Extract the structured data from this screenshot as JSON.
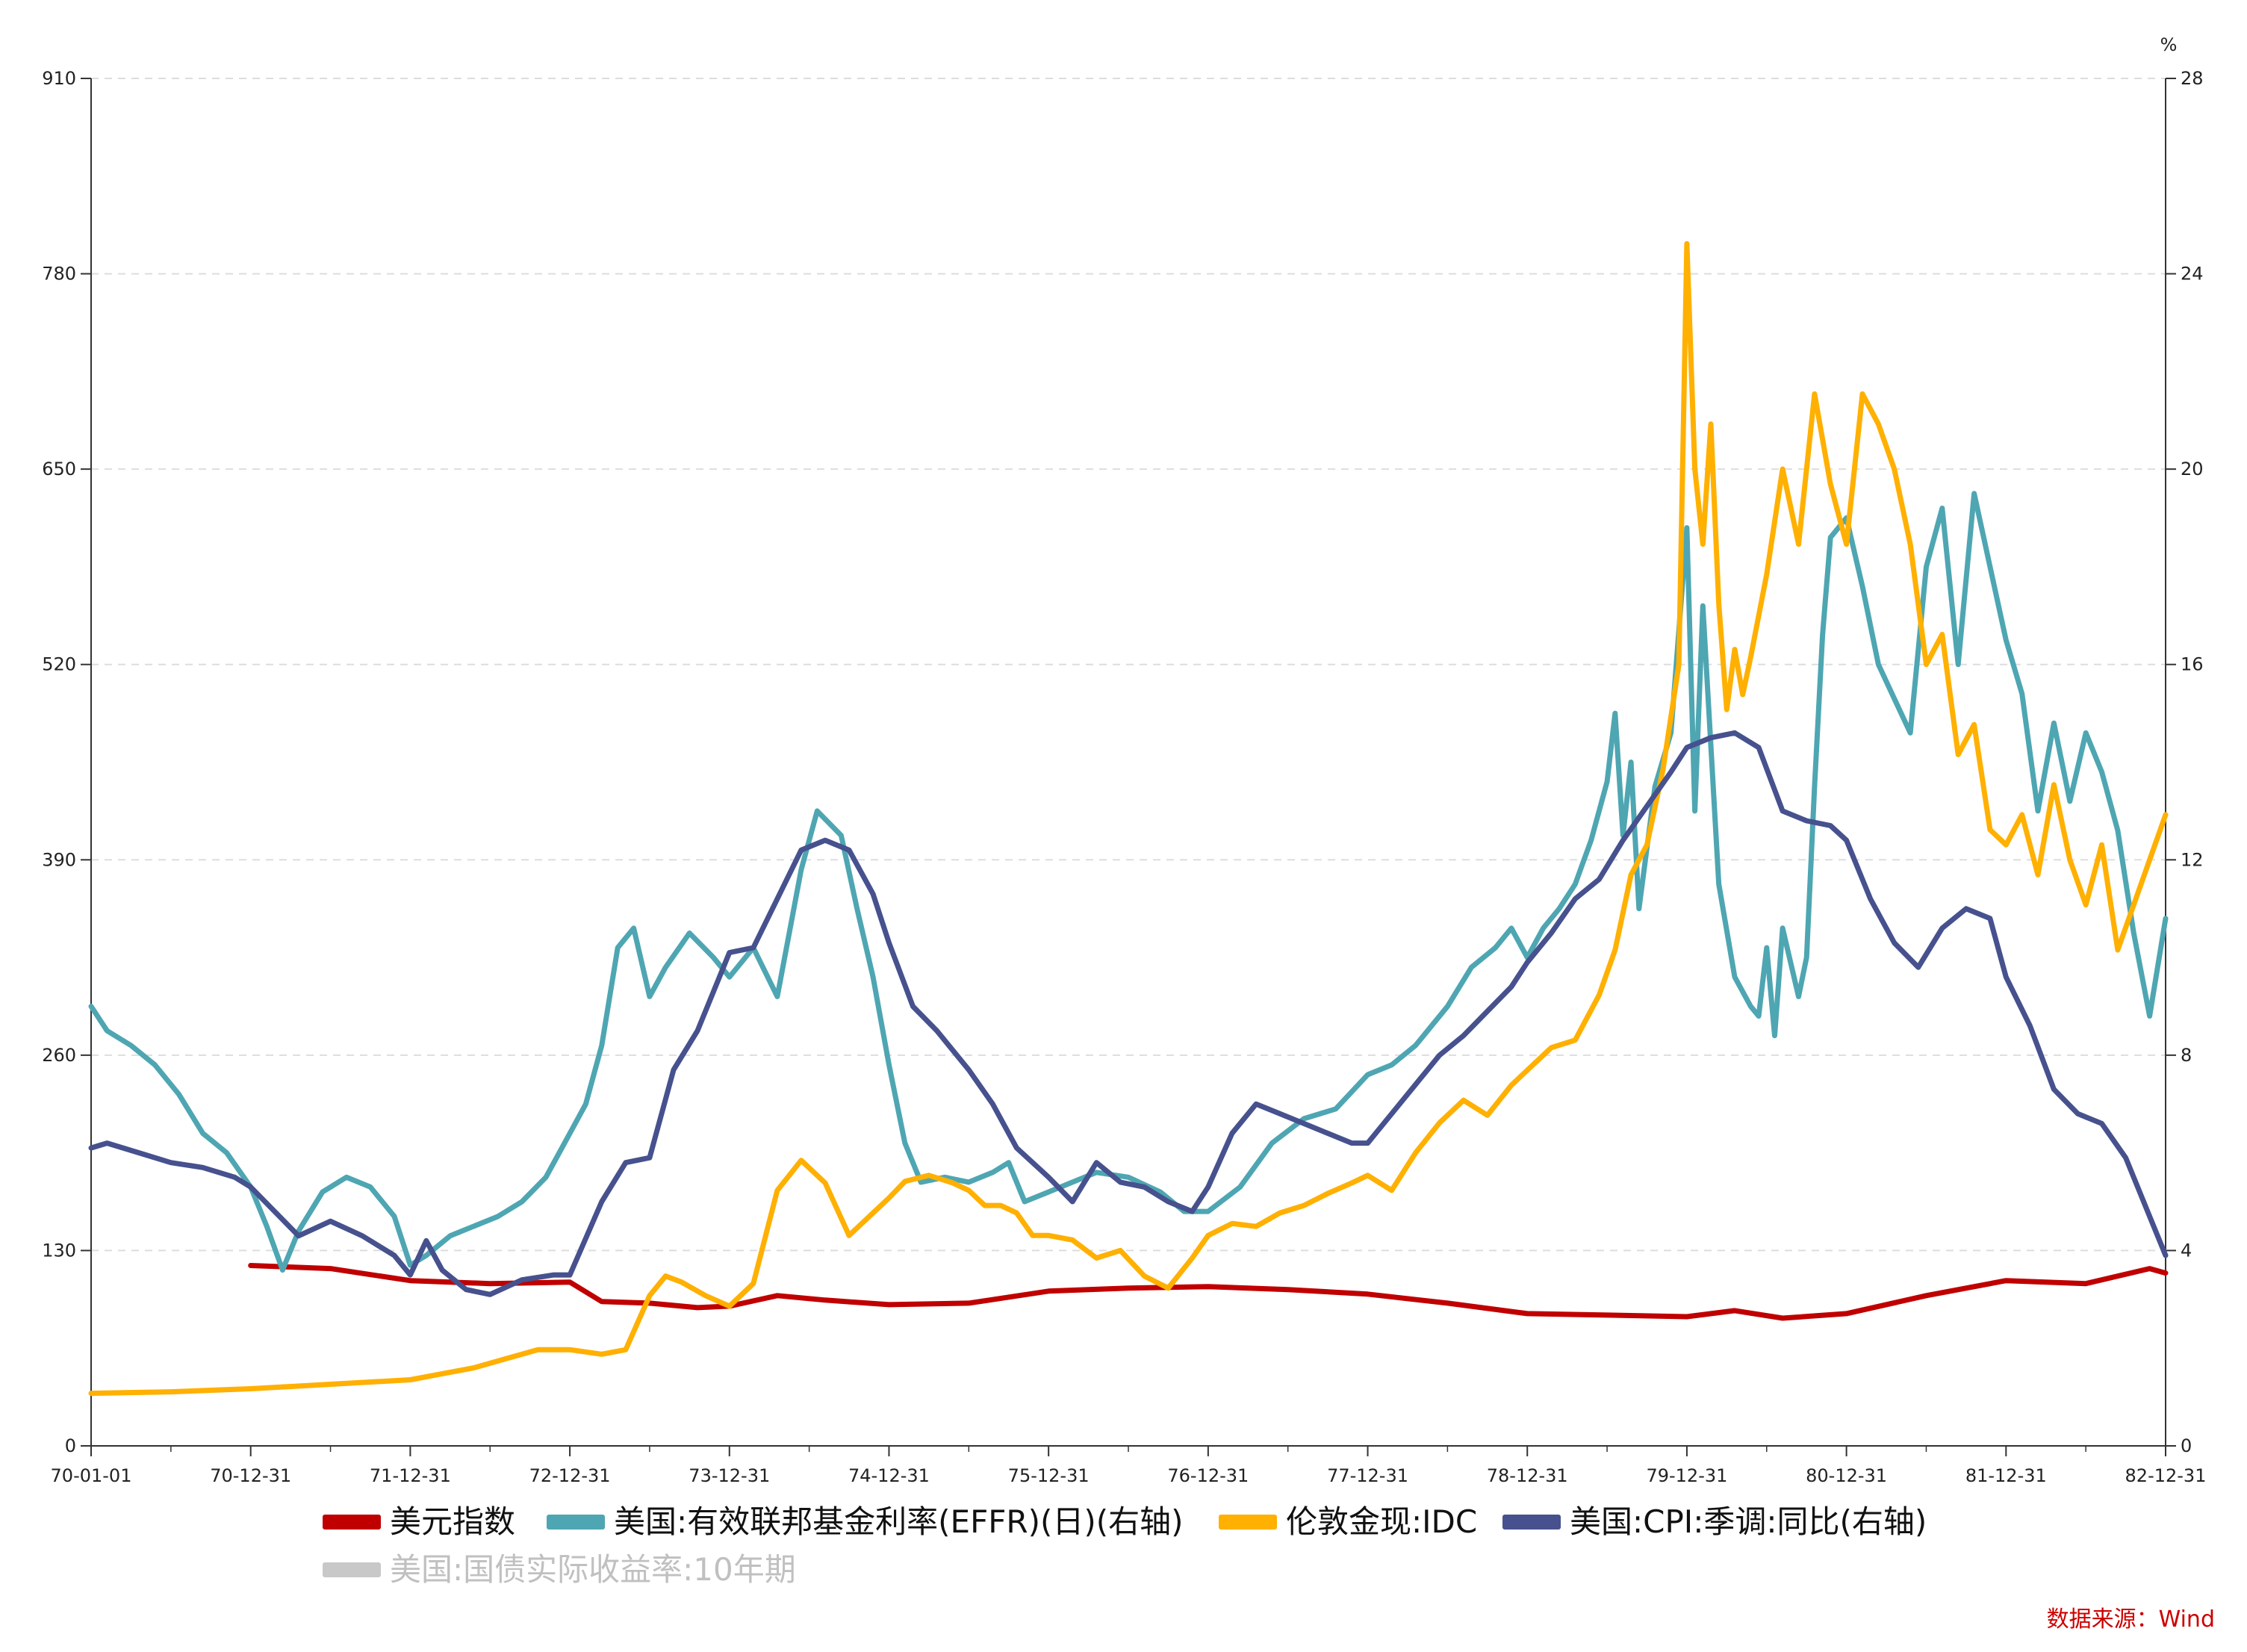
{
  "chart_data": {
    "type": "line",
    "left_axis": {
      "ticks": [
        "910",
        "780",
        "650",
        "520",
        "390",
        "260",
        "130",
        "0"
      ],
      "ylim": [
        0,
        910
      ]
    },
    "right_axis": {
      "unit": "%",
      "ticks": [
        "28",
        "24",
        "20",
        "16",
        "12",
        "8",
        "4",
        "0"
      ],
      "ylim": [
        0,
        28
      ]
    },
    "x_ticks": [
      "70-01-01",
      "70-12-31",
      "71-12-31",
      "72-12-31",
      "73-12-31",
      "74-12-31",
      "75-12-31",
      "76-12-31",
      "77-12-31",
      "78-12-31",
      "79-12-31",
      "80-12-31",
      "81-12-31",
      "82-12-31"
    ],
    "grid": true,
    "legend_position": "bottom",
    "source": "数据来源：Wind",
    "series": [
      {
        "name": "美元指数",
        "axis": "left",
        "color": "#c00000",
        "x": [
          0,
          0.5,
          1,
          1.5,
          2,
          2.5,
          3,
          3.2,
          3.5,
          3.8,
          4,
          4.3,
          4.6,
          5,
          5.5,
          6,
          6.5,
          7,
          7.5,
          8,
          8.5,
          9,
          9.5,
          10,
          10.3,
          10.6,
          11,
          11.5,
          12,
          12.5,
          12.9,
          13
        ],
        "y": [
          null,
          null,
          120,
          118,
          110,
          108,
          109,
          96,
          95,
          92,
          93,
          100,
          97,
          94,
          95,
          103,
          105,
          106,
          104,
          101,
          95,
          88,
          87,
          86,
          90,
          85,
          88,
          100,
          110,
          108,
          118,
          115
        ]
      },
      {
        "name": "美国:有效联邦基金利率(EFFR)(日)(右轴)",
        "axis": "right",
        "color": "#4ea6b2",
        "x": [
          0,
          0.1,
          0.25,
          0.4,
          0.55,
          0.7,
          0.85,
          1,
          1.1,
          1.2,
          1.3,
          1.45,
          1.6,
          1.75,
          1.9,
          2,
          2.1,
          2.25,
          2.4,
          2.55,
          2.7,
          2.85,
          3,
          3.1,
          3.2,
          3.3,
          3.4,
          3.5,
          3.6,
          3.75,
          3.9,
          4,
          4.15,
          4.3,
          4.45,
          4.55,
          4.7,
          4.8,
          4.9,
          5,
          5.1,
          5.2,
          5.35,
          5.5,
          5.65,
          5.75,
          5.85,
          6,
          6.15,
          6.3,
          6.5,
          6.7,
          6.85,
          7,
          7.2,
          7.4,
          7.6,
          7.8,
          8,
          8.15,
          8.3,
          8.5,
          8.65,
          8.8,
          8.9,
          9,
          9.1,
          9.2,
          9.3,
          9.4,
          9.5,
          9.55,
          9.6,
          9.65,
          9.7,
          9.8,
          9.9,
          10,
          10.05,
          10.1,
          10.2,
          10.3,
          10.4,
          10.45,
          10.5,
          10.55,
          10.6,
          10.7,
          10.75,
          10.8,
          10.85,
          10.9,
          11,
          11.1,
          11.2,
          11.3,
          11.4,
          11.5,
          11.6,
          11.7,
          11.8,
          11.9,
          12,
          12.1,
          12.2,
          12.3,
          12.4,
          12.5,
          12.6,
          12.7,
          12.8,
          12.9,
          13
        ],
        "y": [
          9,
          8.5,
          8.2,
          7.8,
          7.2,
          6.4,
          6,
          5.3,
          4.5,
          3.6,
          4.4,
          5.2,
          5.5,
          5.3,
          4.7,
          3.7,
          3.9,
          4.3,
          4.5,
          4.7,
          5.0,
          5.5,
          6.4,
          7.0,
          8.2,
          10.2,
          10.6,
          9.2,
          9.8,
          10.5,
          10.0,
          9.6,
          10.2,
          9.2,
          11.8,
          13.0,
          12.5,
          11.0,
          9.6,
          7.8,
          6.2,
          5.4,
          5.5,
          5.4,
          5.6,
          5.8,
          5.0,
          5.2,
          5.4,
          5.6,
          5.5,
          5.2,
          4.8,
          4.8,
          5.3,
          6.2,
          6.7,
          6.9,
          7.6,
          7.8,
          8.2,
          9.0,
          9.8,
          10.2,
          10.6,
          10.0,
          10.6,
          11.0,
          11.5,
          12.4,
          13.6,
          15.0,
          12.5,
          14.0,
          11.0,
          13.5,
          14.6,
          18.8,
          13.0,
          17.2,
          11.5,
          9.6,
          9.0,
          8.8,
          10.2,
          8.4,
          10.6,
          9.2,
          10.0,
          13.5,
          16.6,
          18.6,
          19.0,
          17.6,
          16.0,
          15.3,
          14.6,
          18.0,
          19.2,
          16.0,
          19.5,
          18.0,
          16.5,
          15.4,
          13.0,
          14.8,
          13.2,
          14.6,
          13.8,
          12.6,
          10.5,
          8.8,
          10.8
        ]
      },
      {
        "name": "伦敦金现:IDC",
        "axis": "left",
        "color": "#ffb000",
        "x": [
          0,
          0.5,
          1,
          1.5,
          2,
          2.2,
          2.4,
          2.6,
          2.8,
          3,
          3.2,
          3.35,
          3.5,
          3.6,
          3.7,
          3.85,
          4,
          4.15,
          4.3,
          4.45,
          4.6,
          4.75,
          4.9,
          5,
          5.1,
          5.25,
          5.4,
          5.5,
          5.6,
          5.7,
          5.8,
          5.9,
          6,
          6.15,
          6.3,
          6.45,
          6.6,
          6.75,
          6.9,
          7,
          7.15,
          7.3,
          7.45,
          7.6,
          7.75,
          7.9,
          8,
          8.15,
          8.3,
          8.45,
          8.6,
          8.75,
          8.9,
          9,
          9.15,
          9.3,
          9.45,
          9.55,
          9.65,
          9.75,
          9.85,
          9.95,
          10,
          10.05,
          10.1,
          10.15,
          10.2,
          10.25,
          10.3,
          10.35,
          10.4,
          10.5,
          10.6,
          10.7,
          10.8,
          10.9,
          11,
          11.1,
          11.2,
          11.3,
          11.4,
          11.5,
          11.6,
          11.7,
          11.8,
          11.9,
          12,
          12.1,
          12.2,
          12.3,
          12.4,
          12.5,
          12.6,
          12.7,
          12.8,
          12.9,
          13
        ],
        "y": [
          35,
          36,
          38,
          41,
          44,
          48,
          52,
          58,
          64,
          64,
          61,
          64,
          100,
          113,
          109,
          100,
          93,
          108,
          170,
          190,
          175,
          140,
          155,
          165,
          176,
          180,
          175,
          170,
          160,
          160,
          155,
          140,
          140,
          137,
          125,
          130,
          113,
          105,
          125,
          140,
          148,
          146,
          155,
          160,
          168,
          175,
          180,
          170,
          195,
          215,
          230,
          220,
          240,
          250,
          265,
          270,
          300,
          330,
          380,
          400,
          450,
          520,
          800,
          650,
          600,
          680,
          560,
          490,
          530,
          500,
          525,
          580,
          650,
          600,
          700,
          640,
          600,
          700,
          680,
          650,
          600,
          520,
          540,
          460,
          480,
          410,
          400,
          420,
          380,
          440,
          390,
          360,
          400,
          330,
          360,
          390,
          420
        ]
      },
      {
        "name": "美国:CPI:季调:同比(右轴)",
        "axis": "right",
        "color": "#46518e",
        "x": [
          0,
          0.1,
          0.3,
          0.5,
          0.7,
          0.9,
          1,
          1.15,
          1.3,
          1.5,
          1.7,
          1.9,
          2,
          2.1,
          2.2,
          2.35,
          2.5,
          2.7,
          2.9,
          3,
          3.2,
          3.35,
          3.5,
          3.65,
          3.8,
          4,
          4.15,
          4.3,
          4.45,
          4.6,
          4.75,
          4.9,
          5,
          5.15,
          5.3,
          5.5,
          5.65,
          5.8,
          6,
          6.15,
          6.3,
          6.45,
          6.6,
          6.75,
          6.9,
          7,
          7.15,
          7.3,
          7.45,
          7.6,
          7.75,
          7.9,
          8,
          8.15,
          8.3,
          8.45,
          8.6,
          8.75,
          8.9,
          9,
          9.15,
          9.3,
          9.45,
          9.6,
          9.75,
          9.9,
          10,
          10.15,
          10.3,
          10.45,
          10.6,
          10.75,
          10.9,
          11,
          11.15,
          11.3,
          11.45,
          11.6,
          11.75,
          11.9,
          12,
          12.15,
          12.3,
          12.45,
          12.6,
          12.75,
          12.9,
          13
        ],
        "y": [
          6.1,
          6.2,
          6.0,
          5.8,
          5.7,
          5.5,
          5.3,
          4.8,
          4.3,
          4.6,
          4.3,
          3.9,
          3.5,
          4.2,
          3.6,
          3.2,
          3.1,
          3.4,
          3.5,
          3.5,
          5.0,
          5.8,
          5.9,
          7.7,
          8.5,
          10.1,
          10.2,
          11.2,
          12.2,
          12.4,
          12.2,
          11.3,
          10.3,
          9.0,
          8.5,
          7.7,
          7.0,
          6.1,
          5.5,
          5.0,
          5.8,
          5.4,
          5.3,
          5.0,
          4.8,
          5.3,
          6.4,
          7.0,
          6.8,
          6.6,
          6.4,
          6.2,
          6.2,
          6.8,
          7.4,
          8.0,
          8.4,
          8.9,
          9.4,
          9.9,
          10.5,
          11.2,
          11.6,
          12.4,
          13.1,
          13.8,
          14.3,
          14.5,
          14.6,
          14.3,
          13.0,
          12.8,
          12.7,
          12.4,
          11.2,
          10.3,
          9.8,
          10.6,
          11.0,
          10.8,
          9.6,
          8.6,
          7.3,
          6.8,
          6.6,
          5.9,
          4.7,
          3.9
        ]
      },
      {
        "name": "美国:国债实际收益率:10年期",
        "axis": "left",
        "color": "#c8c8c8",
        "x": [],
        "y": []
      }
    ]
  }
}
